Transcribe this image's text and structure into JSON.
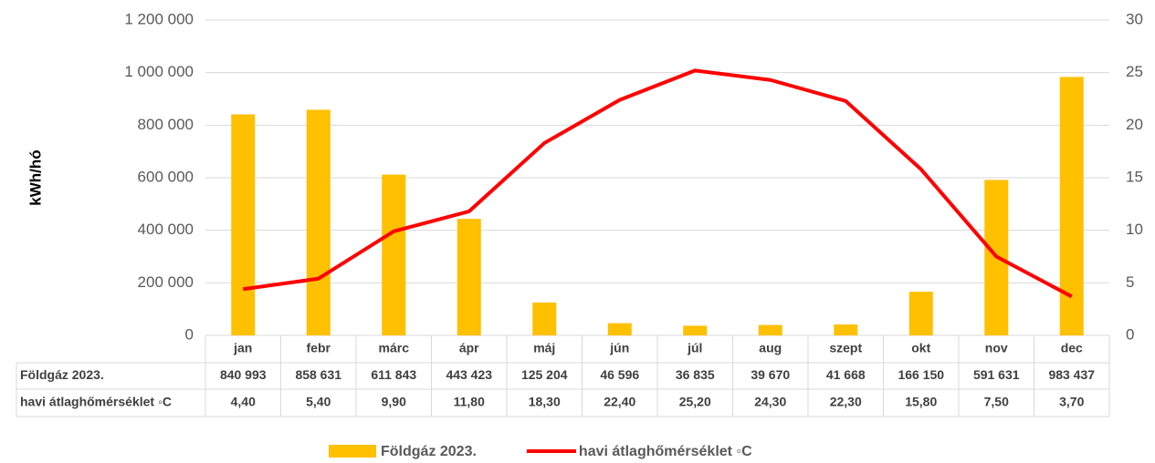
{
  "chart_data": {
    "type": "bar",
    "y_label": "kWh/hó",
    "categories": [
      "jan",
      "febr",
      "márc",
      "ápr",
      "máj",
      "jún",
      "júl",
      "aug",
      "szept",
      "okt",
      "nov",
      "dec"
    ],
    "series": [
      {
        "name": "Földgáz 2023.",
        "type": "bar",
        "color": "#FFC000",
        "values": [
          840993,
          858631,
          611843,
          443423,
          125204,
          46596,
          36835,
          39670,
          41668,
          166150,
          591631,
          983437
        ],
        "value_labels": [
          "840 993",
          "858 631",
          "611 843",
          "443 423",
          "125 204",
          "46 596",
          "36 835",
          "39 670",
          "41 668",
          "166 150",
          "591 631",
          "983 437"
        ]
      },
      {
        "name": "havi átlaghőmérséklet ◦C",
        "type": "line",
        "axis": "y2",
        "color": "#FF0000",
        "values": [
          4.4,
          5.4,
          9.9,
          11.8,
          18.3,
          22.4,
          25.2,
          24.3,
          22.3,
          15.8,
          7.5,
          3.7
        ],
        "value_labels": [
          "4,40",
          "5,40",
          "9,90",
          "11,80",
          "18,30",
          "22,40",
          "25,20",
          "24,30",
          "22,30",
          "15,80",
          "7,50",
          "3,70"
        ]
      }
    ],
    "ylim": [
      0,
      1200000
    ],
    "yticks": [
      0,
      {
        "value": 200000,
        "label": "200 000"
      },
      {
        "value": 400000,
        "label": "400 000"
      },
      {
        "value": 600000,
        "label": "600 000"
      },
      {
        "value": 800000,
        "label": "800 000"
      },
      {
        "value": 1000000,
        "label": "1 000 000"
      },
      {
        "value": 1200000,
        "label": "1 200 000"
      }
    ],
    "y2lim": [
      0,
      30
    ],
    "y2ticks": [
      0,
      5,
      10,
      15,
      20,
      25,
      30
    ],
    "grid": true,
    "legend": "bottom"
  }
}
